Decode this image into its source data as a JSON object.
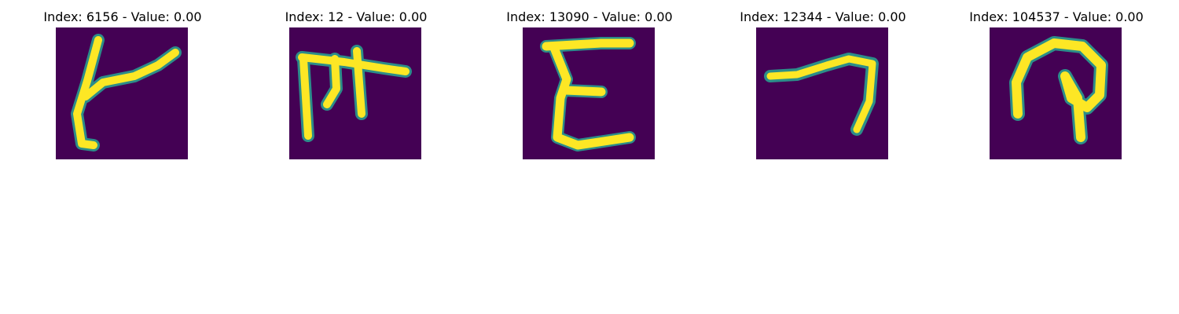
{
  "figure": {
    "colormap": "viridis",
    "background_color": "#440154",
    "stroke_color": "#fde725",
    "edge_color": "#2a9d8f",
    "panels": [
      {
        "title": "Index: 6156 - Value: 0.00"
      },
      {
        "title": "Index: 12 - Value: 0.00"
      },
      {
        "title": "Index: 13090 - Value: 0.00"
      },
      {
        "title": "Index: 12344 - Value: 0.00"
      },
      {
        "title": "Index: 104537 - Value: 0.00"
      }
    ]
  }
}
